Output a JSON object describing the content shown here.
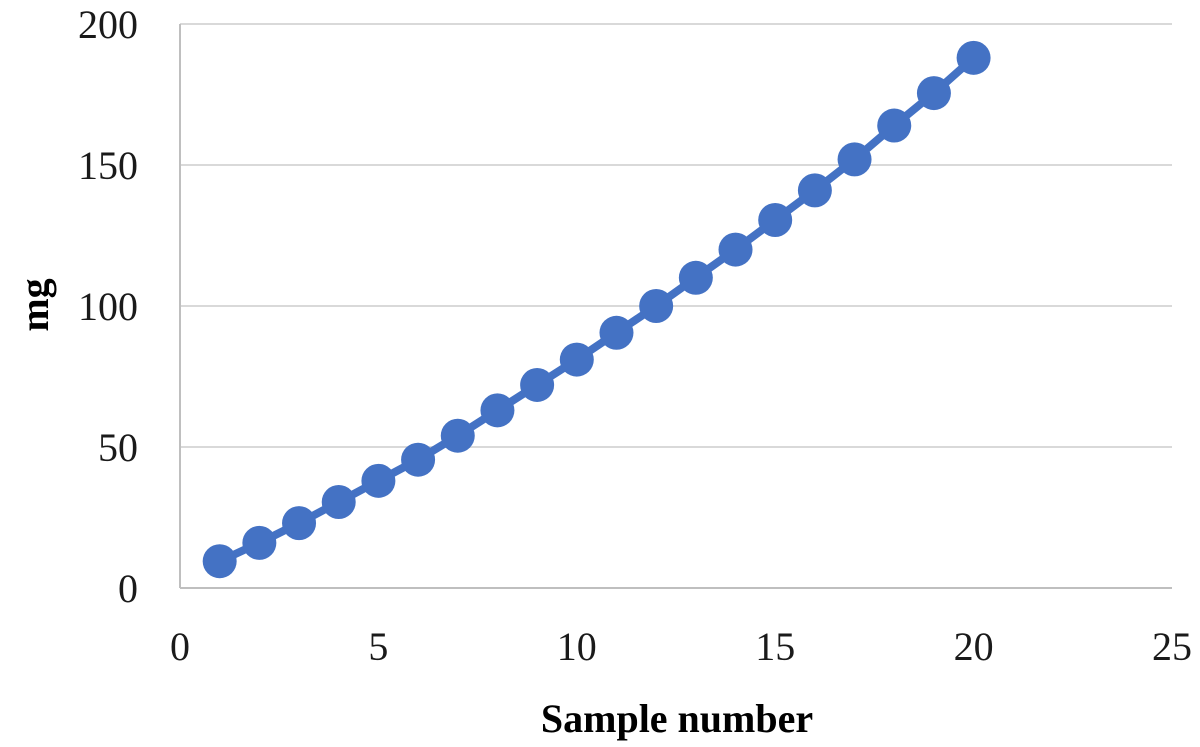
{
  "chart_data": {
    "type": "line",
    "title": "",
    "xlabel": "Sample number",
    "ylabel": "mg",
    "xlim": [
      0,
      25
    ],
    "ylim": [
      0,
      200
    ],
    "x_ticks": [
      0,
      5,
      10,
      15,
      20,
      25
    ],
    "y_ticks": [
      0,
      50,
      100,
      150,
      200
    ],
    "grid": "horizontal",
    "legend": "none",
    "markers": "filled-circle",
    "colors": {
      "series": "#4472C4",
      "grid": "#d9d9d9",
      "axis": "#bfbfbf"
    },
    "series": [
      {
        "x": [
          1,
          2,
          3,
          4,
          5,
          6,
          7,
          8,
          9,
          10,
          11,
          12,
          13,
          14,
          15,
          16,
          17,
          18,
          19,
          20
        ],
        "values": [
          9.5,
          16,
          23,
          30.5,
          38,
          45.5,
          54,
          63,
          72,
          81,
          90.5,
          100,
          110,
          120,
          130.5,
          141,
          152,
          164,
          175.5,
          188
        ]
      }
    ]
  }
}
